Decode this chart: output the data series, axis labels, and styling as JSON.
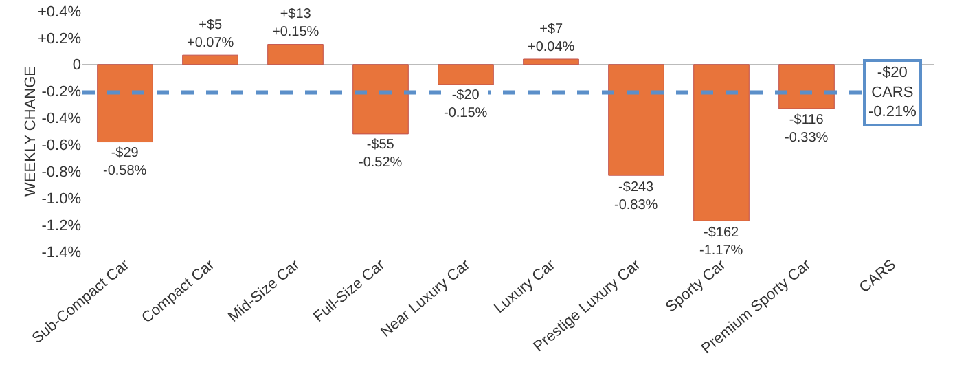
{
  "chart_data": {
    "type": "bar",
    "ylabel": "WEEKLY CHANGE",
    "categories": [
      "Sub-Compact Car",
      "Compact Car",
      "Mid-Size Car",
      "Full-Size Car",
      "Near Luxury Car",
      "Luxury Car",
      "Prestige Luxury Car",
      "Sporty Car",
      "Premium Sporty Car",
      "CARS"
    ],
    "values": [
      -0.58,
      0.07,
      0.15,
      -0.52,
      -0.15,
      0.04,
      -0.83,
      -1.17,
      -0.33,
      null
    ],
    "value_labels": [
      "-$29\n-0.58%",
      "+$5\n+0.07%",
      "+$13\n+0.15%",
      "-$55\n-0.52%",
      "-$20\n-0.15%",
      "+$7\n+0.04%",
      "-$243\n-0.83%",
      "-$162\n-1.17%",
      "-$116\n-0.33%",
      null
    ],
    "color": "#e8743b",
    "ylim": [
      -1.4,
      0.4
    ],
    "yticks": [
      {
        "value": 0.4,
        "label": "+0.4%"
      },
      {
        "value": 0.2,
        "label": "+0.2%"
      },
      0,
      {
        "value": -0.2,
        "label": "-0.2%"
      },
      {
        "value": -0.4,
        "label": "-0.4%"
      },
      {
        "value": -0.6,
        "label": "-0.6%"
      },
      {
        "value": -0.8,
        "label": "-0.8%"
      },
      {
        "value": -1.0,
        "label": "-1.0%"
      },
      {
        "value": -1.2,
        "label": "-1.2%"
      },
      {
        "value": -1.4,
        "label": "-1.4%"
      }
    ],
    "ref_lines": [
      {
        "axis": "y",
        "value": -0.21,
        "label": "-$20\nCARS\n-0.21%",
        "color": "#5b8fc9",
        "line_style": "dashed"
      }
    ],
    "grid": false
  }
}
